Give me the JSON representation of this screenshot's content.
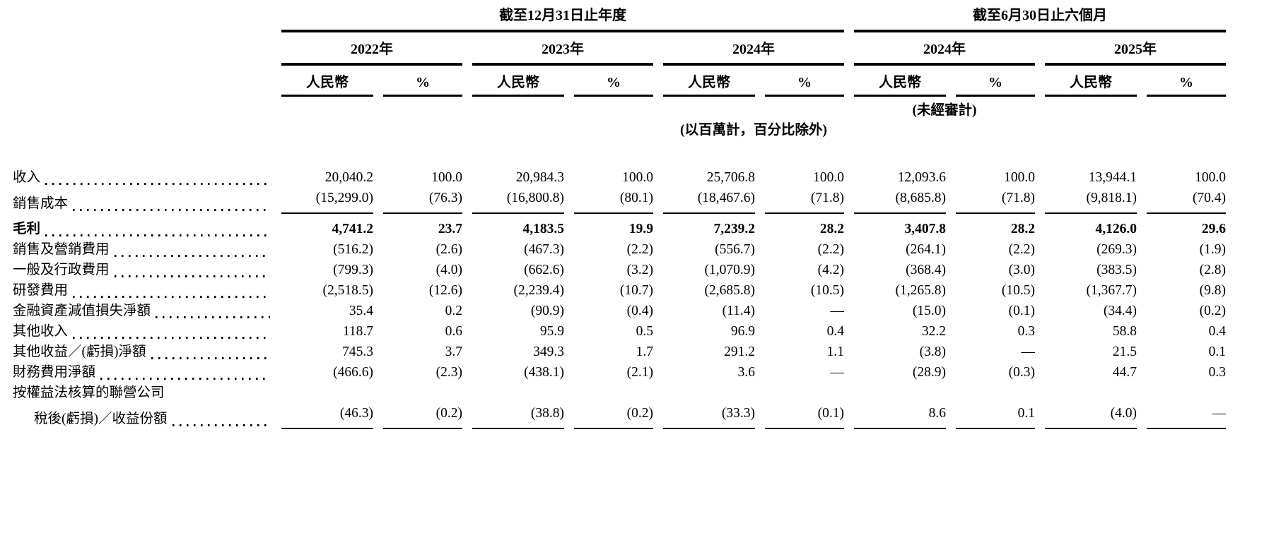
{
  "table": {
    "period_groups": [
      {
        "title": "截至12月31日止年度",
        "years": [
          "2022年",
          "2023年",
          "2024年"
        ]
      },
      {
        "title": "截至6月30日止六個月",
        "years": [
          "2024年",
          "2025年"
        ]
      }
    ],
    "currency_header": "人民幣",
    "percent_header": "%",
    "unaudited_note": "(未經審計)",
    "units_note": "(以百萬計，百分比除外)",
    "rows": [
      {
        "label": "收入",
        "values": [
          "20,040.2",
          "100.0",
          "20,984.3",
          "100.0",
          "25,706.8",
          "100.0",
          "12,093.6",
          "100.0",
          "13,944.1",
          "100.0"
        ]
      },
      {
        "label": "銷售成本",
        "values": [
          "(15,299.0)",
          "(76.3)",
          "(16,800.8)",
          "(80.1)",
          "(18,467.6)",
          "(71.8)",
          "(8,685.8)",
          "(71.8)",
          "(9,818.1)",
          "(70.4)"
        ]
      },
      {
        "label": "毛利",
        "values": [
          "4,741.2",
          "23.7",
          "4,183.5",
          "19.9",
          "7,239.2",
          "28.2",
          "3,407.8",
          "28.2",
          "4,126.0",
          "29.6"
        ]
      },
      {
        "label": "銷售及營銷費用",
        "values": [
          "(516.2)",
          "(2.6)",
          "(467.3)",
          "(2.2)",
          "(556.7)",
          "(2.2)",
          "(264.1)",
          "(2.2)",
          "(269.3)",
          "(1.9)"
        ]
      },
      {
        "label": "一般及行政費用",
        "values": [
          "(799.3)",
          "(4.0)",
          "(662.6)",
          "(3.2)",
          "(1,070.9)",
          "(4.2)",
          "(368.4)",
          "(3.0)",
          "(383.5)",
          "(2.8)"
        ]
      },
      {
        "label": "研發費用",
        "values": [
          "(2,518.5)",
          "(12.6)",
          "(2,239.4)",
          "(10.7)",
          "(2,685.8)",
          "(10.5)",
          "(1,265.8)",
          "(10.5)",
          "(1,367.7)",
          "(9.8)"
        ]
      },
      {
        "label": "金融資產減值損失淨額",
        "values": [
          "35.4",
          "0.2",
          "(90.9)",
          "(0.4)",
          "(11.4)",
          "—",
          "(15.0)",
          "(0.1)",
          "(34.4)",
          "(0.2)"
        ]
      },
      {
        "label": "其他收入",
        "values": [
          "118.7",
          "0.6",
          "95.9",
          "0.5",
          "96.9",
          "0.4",
          "32.2",
          "0.3",
          "58.8",
          "0.4"
        ]
      },
      {
        "label": "其他收益／(虧損)淨額",
        "values": [
          "745.3",
          "3.7",
          "349.3",
          "1.7",
          "291.2",
          "1.1",
          "(3.8)",
          "—",
          "21.5",
          "0.1"
        ]
      },
      {
        "label": "財務費用淨額",
        "values": [
          "(466.6)",
          "(2.3)",
          "(438.1)",
          "(2.1)",
          "3.6",
          "—",
          "(28.9)",
          "(0.3)",
          "44.7",
          "0.3"
        ]
      },
      {
        "label": "按權益法核算的聯營公司",
        "values": []
      },
      {
        "label": "稅後(虧損)／收益份額",
        "values": [
          "(46.3)",
          "(0.2)",
          "(38.8)",
          "(0.2)",
          "(33.3)",
          "(0.1)",
          "8.6",
          "0.1",
          "(4.0)",
          "—"
        ]
      }
    ]
  }
}
